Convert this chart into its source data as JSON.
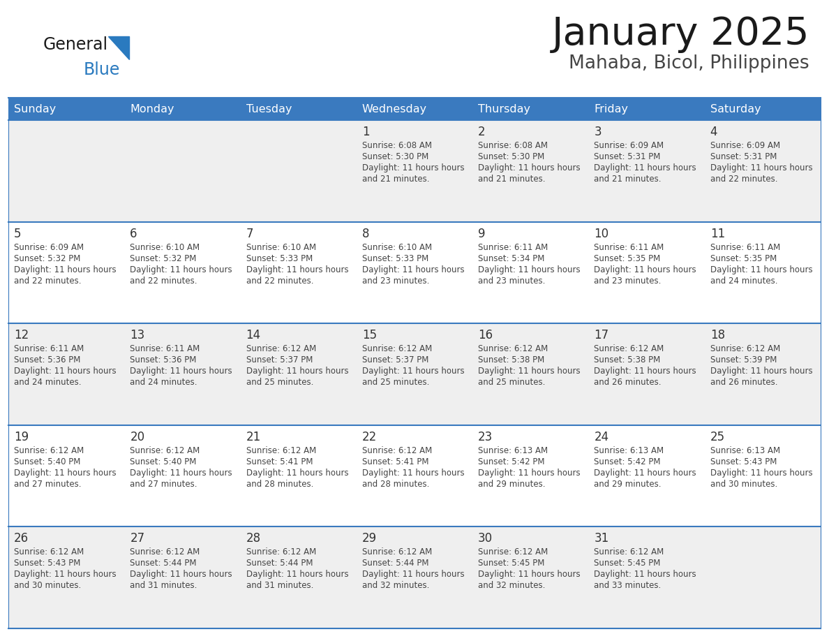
{
  "title": "January 2025",
  "subtitle": "Mahaba, Bicol, Philippines",
  "header_bg_color": "#3a7abf",
  "header_text_color": "#ffffff",
  "day_headers": [
    "Sunday",
    "Monday",
    "Tuesday",
    "Wednesday",
    "Thursday",
    "Friday",
    "Saturday"
  ],
  "row_bg_even": "#efefef",
  "row_bg_odd": "#ffffff",
  "cell_text_color": "#444444",
  "day_num_color": "#333333",
  "divider_color": "#3a7abf",
  "calendar_data": [
    [
      null,
      null,
      null,
      {
        "day": 1,
        "sunrise": "6:08 AM",
        "sunset": "5:30 PM",
        "daylight": "11 hours and 21 minutes"
      },
      {
        "day": 2,
        "sunrise": "6:08 AM",
        "sunset": "5:30 PM",
        "daylight": "11 hours and 21 minutes"
      },
      {
        "day": 3,
        "sunrise": "6:09 AM",
        "sunset": "5:31 PM",
        "daylight": "11 hours and 21 minutes"
      },
      {
        "day": 4,
        "sunrise": "6:09 AM",
        "sunset": "5:31 PM",
        "daylight": "11 hours and 22 minutes"
      }
    ],
    [
      {
        "day": 5,
        "sunrise": "6:09 AM",
        "sunset": "5:32 PM",
        "daylight": "11 hours and 22 minutes"
      },
      {
        "day": 6,
        "sunrise": "6:10 AM",
        "sunset": "5:32 PM",
        "daylight": "11 hours and 22 minutes"
      },
      {
        "day": 7,
        "sunrise": "6:10 AM",
        "sunset": "5:33 PM",
        "daylight": "11 hours and 22 minutes"
      },
      {
        "day": 8,
        "sunrise": "6:10 AM",
        "sunset": "5:33 PM",
        "daylight": "11 hours and 23 minutes"
      },
      {
        "day": 9,
        "sunrise": "6:11 AM",
        "sunset": "5:34 PM",
        "daylight": "11 hours and 23 minutes"
      },
      {
        "day": 10,
        "sunrise": "6:11 AM",
        "sunset": "5:35 PM",
        "daylight": "11 hours and 23 minutes"
      },
      {
        "day": 11,
        "sunrise": "6:11 AM",
        "sunset": "5:35 PM",
        "daylight": "11 hours and 24 minutes"
      }
    ],
    [
      {
        "day": 12,
        "sunrise": "6:11 AM",
        "sunset": "5:36 PM",
        "daylight": "11 hours and 24 minutes"
      },
      {
        "day": 13,
        "sunrise": "6:11 AM",
        "sunset": "5:36 PM",
        "daylight": "11 hours and 24 minutes"
      },
      {
        "day": 14,
        "sunrise": "6:12 AM",
        "sunset": "5:37 PM",
        "daylight": "11 hours and 25 minutes"
      },
      {
        "day": 15,
        "sunrise": "6:12 AM",
        "sunset": "5:37 PM",
        "daylight": "11 hours and 25 minutes"
      },
      {
        "day": 16,
        "sunrise": "6:12 AM",
        "sunset": "5:38 PM",
        "daylight": "11 hours and 25 minutes"
      },
      {
        "day": 17,
        "sunrise": "6:12 AM",
        "sunset": "5:38 PM",
        "daylight": "11 hours and 26 minutes"
      },
      {
        "day": 18,
        "sunrise": "6:12 AM",
        "sunset": "5:39 PM",
        "daylight": "11 hours and 26 minutes"
      }
    ],
    [
      {
        "day": 19,
        "sunrise": "6:12 AM",
        "sunset": "5:40 PM",
        "daylight": "11 hours and 27 minutes"
      },
      {
        "day": 20,
        "sunrise": "6:12 AM",
        "sunset": "5:40 PM",
        "daylight": "11 hours and 27 minutes"
      },
      {
        "day": 21,
        "sunrise": "6:12 AM",
        "sunset": "5:41 PM",
        "daylight": "11 hours and 28 minutes"
      },
      {
        "day": 22,
        "sunrise": "6:12 AM",
        "sunset": "5:41 PM",
        "daylight": "11 hours and 28 minutes"
      },
      {
        "day": 23,
        "sunrise": "6:13 AM",
        "sunset": "5:42 PM",
        "daylight": "11 hours and 29 minutes"
      },
      {
        "day": 24,
        "sunrise": "6:13 AM",
        "sunset": "5:42 PM",
        "daylight": "11 hours and 29 minutes"
      },
      {
        "day": 25,
        "sunrise": "6:13 AM",
        "sunset": "5:43 PM",
        "daylight": "11 hours and 30 minutes"
      }
    ],
    [
      {
        "day": 26,
        "sunrise": "6:12 AM",
        "sunset": "5:43 PM",
        "daylight": "11 hours and 30 minutes"
      },
      {
        "day": 27,
        "sunrise": "6:12 AM",
        "sunset": "5:44 PM",
        "daylight": "11 hours and 31 minutes"
      },
      {
        "day": 28,
        "sunrise": "6:12 AM",
        "sunset": "5:44 PM",
        "daylight": "11 hours and 31 minutes"
      },
      {
        "day": 29,
        "sunrise": "6:12 AM",
        "sunset": "5:44 PM",
        "daylight": "11 hours and 32 minutes"
      },
      {
        "day": 30,
        "sunrise": "6:12 AM",
        "sunset": "5:45 PM",
        "daylight": "11 hours and 32 minutes"
      },
      {
        "day": 31,
        "sunrise": "6:12 AM",
        "sunset": "5:45 PM",
        "daylight": "11 hours and 33 minutes"
      },
      null
    ]
  ]
}
